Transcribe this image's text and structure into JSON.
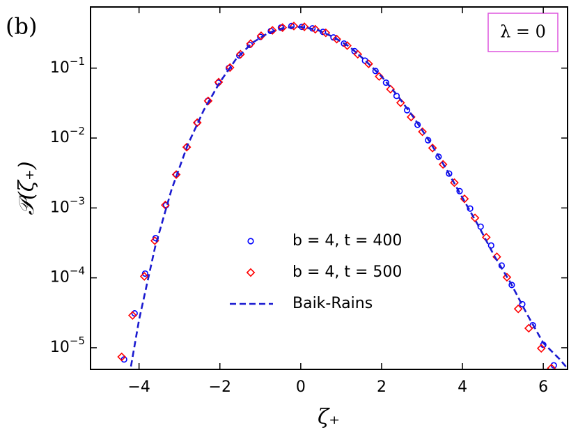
{
  "chart_data": {
    "type": "scatter",
    "panel_label": "(b)",
    "annotation": "λ = 0",
    "xlabel": "ζ₊",
    "ylabel": "𝒫(ζ₊)",
    "xlim": [
      -5.2,
      6.6
    ],
    "ylim": [
      4.9e-06,
      0.75
    ],
    "yscale": "log",
    "xticks": [
      {
        "value": -4,
        "label": "−4"
      },
      {
        "value": -2,
        "label": "−2"
      },
      0,
      2,
      4,
      6
    ],
    "yticks": [
      {
        "value": 1e-05,
        "label": "10−5"
      },
      {
        "value": 0.0001,
        "label": "10−4"
      },
      {
        "value": 0.001,
        "label": "10−3"
      },
      {
        "value": 0.01,
        "label": "10−2"
      },
      {
        "value": 0.1,
        "label": "10−1"
      }
    ],
    "legend": "lower center",
    "series": [
      {
        "name": "b = 4, t = 400",
        "color": "#0000ff",
        "marker": "circle",
        "x": [
          -4.37,
          -4.11,
          -3.85,
          -3.59,
          -3.33,
          -3.08,
          -2.82,
          -2.56,
          -2.3,
          -2.04,
          -1.78,
          -1.52,
          -1.26,
          -1.0,
          -0.74,
          -0.49,
          -0.23,
          0.03,
          0.29,
          0.55,
          0.81,
          1.07,
          1.33,
          1.59,
          1.85,
          2.11,
          2.37,
          2.63,
          2.89,
          3.15,
          3.41,
          3.67,
          3.93,
          4.19,
          4.45,
          4.71,
          4.97,
          5.22,
          5.48,
          5.74,
          6.0,
          6.26
        ],
        "values": [
          6.8e-06,
          3.1e-05,
          0.000115,
          0.00037,
          0.0011,
          0.003,
          0.0074,
          0.0166,
          0.034,
          0.062,
          0.1,
          0.152,
          0.215,
          0.28,
          0.34,
          0.38,
          0.4,
          0.39,
          0.37,
          0.33,
          0.275,
          0.225,
          0.175,
          0.128,
          0.091,
          0.062,
          0.04,
          0.025,
          0.0155,
          0.0093,
          0.0054,
          0.0031,
          0.00174,
          0.00098,
          0.00054,
          0.00029,
          0.00015,
          7.9e-05,
          4.2e-05,
          2.1e-05,
          1.1e-05,
          5.6e-06
        ]
      },
      {
        "name": "b = 4, t = 500",
        "color": "#ff0000",
        "marker": "diamond",
        "x": [
          -4.43,
          -4.16,
          -3.87,
          -3.61,
          -3.35,
          -3.08,
          -2.82,
          -2.56,
          -2.29,
          -2.03,
          -1.75,
          -1.49,
          -1.24,
          -0.98,
          -0.7,
          -0.45,
          -0.17,
          0.09,
          0.36,
          0.62,
          0.89,
          1.15,
          1.41,
          1.68,
          1.94,
          2.22,
          2.47,
          2.73,
          3.01,
          3.26,
          3.52,
          3.8,
          4.05,
          4.31,
          4.59,
          4.85,
          5.1,
          5.38,
          5.64,
          5.95,
          6.2
        ],
        "values": [
          7.4e-06,
          2.9e-05,
          0.000105,
          0.00034,
          0.0011,
          0.003,
          0.0074,
          0.0166,
          0.034,
          0.063,
          0.102,
          0.158,
          0.224,
          0.29,
          0.347,
          0.38,
          0.4,
          0.39,
          0.36,
          0.32,
          0.26,
          0.21,
          0.158,
          0.115,
          0.076,
          0.05,
          0.032,
          0.02,
          0.0123,
          0.0072,
          0.0042,
          0.0023,
          0.00135,
          0.00072,
          0.00038,
          0.0002,
          0.000102,
          3.6e-05,
          1.9e-05,
          9.8e-06,
          5.1e-06
        ]
      },
      {
        "name": "Baik-Rains",
        "color": "#1a1ad0",
        "marker": "dashed-line",
        "x": [
          -4.2,
          -4.0,
          -3.6,
          -3.2,
          -2.8,
          -2.4,
          -2.0,
          -1.6,
          -1.2,
          -0.8,
          -0.4,
          0,
          0.4,
          0.8,
          1.2,
          1.6,
          2.0,
          2.4,
          2.8,
          3.2,
          3.6,
          4.0,
          4.4,
          4.8,
          5.2,
          5.6,
          6.0,
          6.4,
          6.58
        ],
        "values": [
          5.4e-06,
          2.5e-05,
          0.00028,
          0.0018,
          0.0079,
          0.025,
          0.063,
          0.135,
          0.23,
          0.32,
          0.38,
          0.39,
          0.355,
          0.28,
          0.204,
          0.128,
          0.076,
          0.04,
          0.0195,
          0.0087,
          0.0036,
          0.0014,
          0.00055,
          0.0002,
          8.3e-05,
          3e-05,
          1.17e-05,
          6.9e-06,
          5.2e-06
        ]
      }
    ]
  }
}
